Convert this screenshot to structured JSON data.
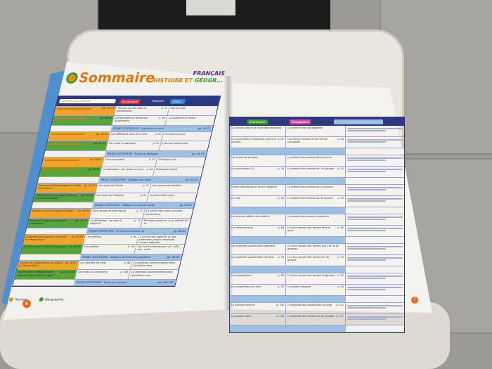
{
  "book": {
    "title": "Sommaire",
    "subtitle_1": "FRANÇAIS",
    "subtitle_2_histoire": "HISTOIRE ET",
    "subtitle_2_geo": "GÉOGR...",
    "left_header": {
      "section": "FRANÇAIS",
      "col_hist": "HISTOIRE GÉOGRAPHIE",
      "col_vocab": "Vocabulaire",
      "col_ortho": "Ortho..."
    },
    "right_header": {
      "col_gram": "Grammaire",
      "col_conj": "Conjugaison",
      "col_extra": "…"
    },
    "left_blocks": [
      {
        "rows": [
          {
            "hist": "",
            "hist_pg": "pp. 12-13",
            "vocab": "Trouver un mot dans le dictionnaire",
            "vocab_pg": "p. 1?",
            "ortho": "Les accents"
          },
          {
            "hist": "",
            "hist_pg": "pp. 18-19",
            "vocab": "Comprendre un article de dictionnaire",
            "vocab_pg": "p. 20",
            "ortho": "La cédille et le tréma"
          }
        ],
        "projet": "PROJET D'ÉCRITURE · Continuer un récit",
        "projet_pg": "pp. 26-27"
      },
      {
        "rows": [
          {
            "hist": "",
            "hist_pg": "pp. 28-29",
            "vocab": "Les différents sens d'un mot",
            "vocab_pg": "p. 22",
            "ortho": "Les homonymes"
          },
          {
            "hist": "",
            "hist_pg": "pp. 32-33",
            "vocab": "Les mots en passage",
            "vocab_pg": "p. 24",
            "ortho": "L'accord sujet-verbe"
          }
        ],
        "projet": "PROJET D'ÉCRITURE · Écrire un dialogue",
        "projet_pg": "pp. 38-39"
      },
      {
        "rows": [
          {
            "hist": "",
            "hist_pg": "pp. 40-41",
            "vocab": "Les synonymes",
            "vocab_pg": "p. 32",
            "ortho": "Distinguer a/à"
          },
          {
            "hist": "",
            "hist_pg": "pp. 46-47",
            "vocab": "La dérivation : du verbe au nom",
            "vocab_pg": "p. 44",
            "ortho": "Distinguer et/est"
          }
        ],
        "projet": "PROJET D'ÉCRITURE · Rédiger une lettre",
        "projet_pg": "pp. 52-53"
      },
      {
        "rows": [
          {
            "hist": "Comment Charlemagne a-t-il bâti son Empire ?",
            "hist_pg": "pp. 54-55",
            "vocab": "Les mots de l'école",
            "vocab_pg": "p. 5?",
            "ortho": "Les consonnes doubles"
          },
          {
            "hist": "Comment les paysages d'Europe sont-ils aménagés ?",
            "hist_pg": "pp. 60-61",
            "vocab": "Les mots de l'Histoire",
            "vocab_pg": "p. 62",
            "ortho": "Le pluriel des noms"
          }
        ],
        "projet": "PROJET D'ÉCRITURE · Rédiger un compte-rendu",
        "projet_pg": "pp. 64-65"
      },
      {
        "rows": [
          {
            "hist": "Qu'est-ce qu'un seigneur féodal ?",
            "hist_pg": "pp. 68-69",
            "vocab": "Sens propre et sens figuré",
            "vocab_pg": "p. 72",
            "ortho": "Le pluriel des noms (accords particuliers)"
          },
          {
            "hist": "Comment l'espace européen s'organise ?",
            "hist_pg": "pp. 74-75",
            "vocab": "La dérivation : du nom à l'adjectif",
            "vocab_pg": "p. 74",
            "ortho": "Participe passé en -é ou infinitif en -er"
          }
        ],
        "projet": "PROJET D'ÉCRITURE · Écrire à la manière de",
        "projet_pg": "pp. 80-81"
      },
      {
        "rows": [
          {
            "hist": "Comment les paysans vivent-ils au Moyen Âge ?",
            "hist_pg": "pp. 82-83",
            "vocab": "Les préfixes",
            "vocab_pg": "p. 84",
            "ortho": "L'accord des adjectifs et des participes passés employés comme adjectifs"
          },
          {
            "hist": "Qu'est-ce que l'Union européenne ?",
            "hist_pg": "pp. 88-89",
            "vocab": "Les suffixes",
            "vocab_pg": "p. 90",
            "ortho": "Les noms terminés par -ail, -eille, -euil, -ouille"
          }
        ],
        "projet": "PROJET D'ÉCRITURE · Rédiger une fiche documentaire",
        "projet_pg": "pp. 94-95"
      },
      {
        "rows": [
          {
            "hist": "Quelle est l'importance de l'Église au Moyen Âge ?",
            "hist_pg": "pp. 96-97",
            "vocab": "Les familles de mots",
            "vocab_pg": "p. 98",
            "ortho": "Le participe passé employé avec l'auxiliaire être"
          },
          {
            "hist": "Quelle place la Méditerranée occupe-t-elle au Moyen Âge ?",
            "hist_pg": "pp. 102-103",
            "vocab": "Les mots du commerce",
            "vocab_pg": "p. 104",
            "ortho": "Le participe passé employé avec l'auxiliaire avoir"
          }
        ],
        "projet": "PROJET D'ÉCRITURE · Écrire un nouveau",
        "projet_pg": "pp. 108-109"
      }
    ],
    "right_rows": [
      {
        "gram": "La phrase simple et la phrase complexe",
        "gram_pg": "",
        "conj": "Le verbe et ses paradigmes",
        "conj_pg": ""
      },
      {
        "gram": "La ponctuation (majuscule, point et virgule)",
        "gram_pg": "p. 22",
        "conj": "Les temps simples et les temps composés",
        "conj_pg": "p. 23"
      },
      {
        "gram": "Les types de phrases",
        "gram_pg": "",
        "conj": "Le présent des verbes être et avoir",
        "conj_pg": ""
      },
      {
        "gram": "La ponctuation (2)",
        "gram_pg": "p. 34",
        "conj": "Le présent des verbes du 1er groupe",
        "conj_pg": "p. 35"
      },
      {
        "gram": "Forme affirmative et forme négative",
        "gram_pg": "",
        "conj": "Le présent des verbes du 2e groupe",
        "conj_pg": ""
      },
      {
        "gram": "Le nom",
        "gram_pg": "p. 58",
        "conj": "Le présent des verbes du 3e groupe",
        "conj_pg": "p. 59"
      },
      {
        "gram": "Les articles définis et indéfinis",
        "gram_pg": "",
        "conj": "Le présent des verbes irréguliers",
        "conj_pg": ""
      },
      {
        "gram": "Les déterminants",
        "gram_pg": "p. 66",
        "conj": "Le futur simple des verbes être et avoir",
        "conj_pg": "p. 65"
      },
      {
        "gram": "Les adjectifs qualificatifs épithètes",
        "gram_pg": "",
        "conj": "Le futur simple des verbes des 1er et 2e groupes",
        "conj_pg": ""
      },
      {
        "gram": "Les adjectifs qualificatifs attributs",
        "gram_pg": "p. 78",
        "conj": "Le futur simple des verbes du 3e groupe",
        "conj_pg": "p. 79"
      },
      {
        "gram": "Les prépositions",
        "gram_pg": "p. 86",
        "conj": "Le futur simple des verbes irréguliers",
        "conj_pg": "p. 87"
      },
      {
        "gram": "Le complément du nom",
        "gram_pg": "p. 92",
        "conj": "Le passé composé",
        "conj_pg": "p. 93"
      },
      {
        "gram": "Le groupe nominal",
        "gram_pg": "p. 100",
        "conj": "L'imparfait des verbes être et avoir",
        "conj_pg": "p. 101"
      },
      {
        "gram": "Le groupe sujet",
        "gram_pg": "p. 106",
        "conj": "L'imparfait des verbes du 1er groupe",
        "conj_pg": "p. 107"
      }
    ],
    "legend": {
      "histoire": "Histoire",
      "geographie": "Géographie"
    },
    "page_left": "6",
    "page_right": "7",
    "colors": {
      "orange": "#f0a52a",
      "green": "#58a33a",
      "navy": "#2d3a80",
      "light_blue": "#9dbfe2"
    }
  }
}
